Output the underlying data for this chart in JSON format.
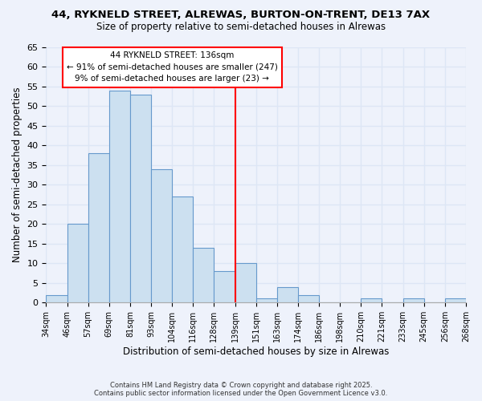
{
  "title": "44, RYKNELD STREET, ALREWAS, BURTON-ON-TRENT, DE13 7AX",
  "subtitle": "Size of property relative to semi-detached houses in Alrewas",
  "xlabel": "Distribution of semi-detached houses by size in Alrewas",
  "ylabel": "Number of semi-detached properties",
  "bin_labels": [
    "34sqm",
    "46sqm",
    "57sqm",
    "69sqm",
    "81sqm",
    "93sqm",
    "104sqm",
    "116sqm",
    "128sqm",
    "139sqm",
    "151sqm",
    "163sqm",
    "174sqm",
    "186sqm",
    "198sqm",
    "210sqm",
    "221sqm",
    "233sqm",
    "245sqm",
    "256sqm",
    "268sqm"
  ],
  "bar_heights": [
    2,
    20,
    38,
    54,
    53,
    34,
    27,
    14,
    8,
    10,
    1,
    4,
    2,
    0,
    0,
    1,
    0,
    1,
    0,
    1
  ],
  "bar_color": "#cce0f0",
  "bar_edge_color": "#6699cc",
  "vline_x": 9.0,
  "vline_color": "red",
  "annotation_title": "44 RYKNELD STREET: 136sqm",
  "annotation_line1": "← 91% of semi-detached houses are smaller (247)",
  "annotation_line2": "9% of semi-detached houses are larger (23) →",
  "ylim": [
    0,
    65
  ],
  "yticks": [
    0,
    5,
    10,
    15,
    20,
    25,
    30,
    35,
    40,
    45,
    50,
    55,
    60,
    65
  ],
  "footer_line1": "Contains HM Land Registry data © Crown copyright and database right 2025.",
  "footer_line2": "Contains public sector information licensed under the Open Government Licence v3.0.",
  "bg_color": "#eef2fb",
  "grid_color": "#dde6f5"
}
